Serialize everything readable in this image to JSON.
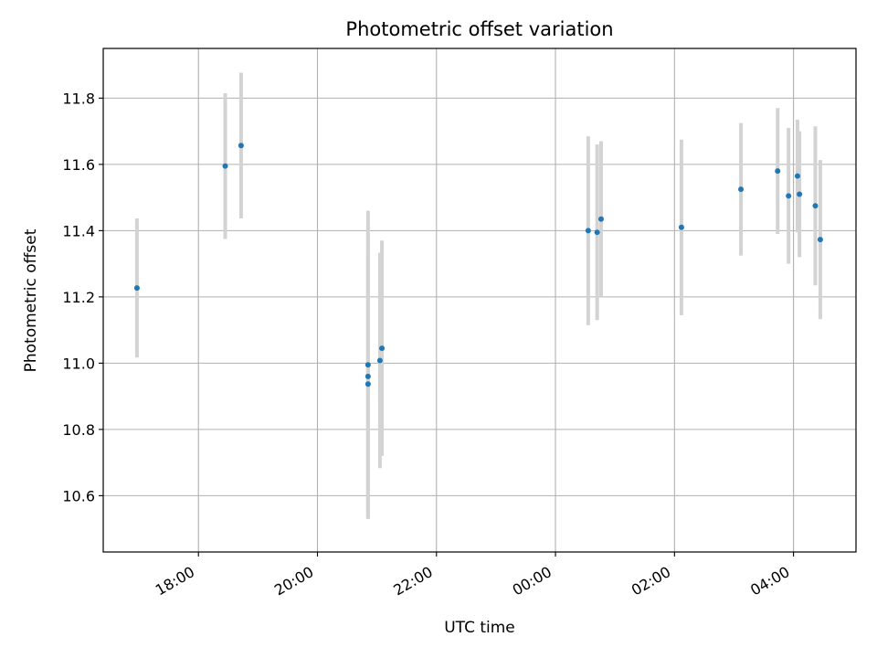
{
  "chart_data": {
    "type": "scatter",
    "title": "Photometric offset variation",
    "xlabel": "UTC time",
    "ylabel": "Photometric offset",
    "x_tick_labels": [
      "18:00",
      "20:00",
      "22:00",
      "00:00",
      "02:00",
      "04:00"
    ],
    "x_tick_hours": [
      18,
      20,
      22,
      24,
      26,
      28
    ],
    "xlim_hours": [
      16.4,
      29.05
    ],
    "y_ticks": [
      "10.6",
      "10.8",
      "11.0",
      "11.2",
      "11.4",
      "11.6",
      "11.8"
    ],
    "ylim": [
      10.43,
      11.95
    ],
    "grid": true,
    "point_color": "#1f77b4",
    "errorbar_color": "#d3d3d3",
    "points": [
      {
        "x": "16:58",
        "y": 11.227,
        "err": 0.21
      },
      {
        "x": "18:27",
        "y": 11.595,
        "err": 0.22
      },
      {
        "x": "18:43",
        "y": 11.657,
        "err": 0.22
      },
      {
        "x": "20:51",
        "y": 10.995,
        "err": 0.465
      },
      {
        "x": "20:51",
        "y": 10.96,
        "err": 0.43
      },
      {
        "x": "20:51",
        "y": 10.937,
        "err": 0.4
      },
      {
        "x": "21:03",
        "y": 11.008,
        "err": 0.325
      },
      {
        "x": "21:05",
        "y": 11.045,
        "err": 0.325
      },
      {
        "x": "00:33",
        "y": 11.4,
        "err": 0.285
      },
      {
        "x": "00:42",
        "y": 11.395,
        "err": 0.265
      },
      {
        "x": "00:46",
        "y": 11.435,
        "err": 0.235
      },
      {
        "x": "02:07",
        "y": 11.41,
        "err": 0.265
      },
      {
        "x": "03:07",
        "y": 11.525,
        "err": 0.2
      },
      {
        "x": "03:44",
        "y": 11.58,
        "err": 0.19
      },
      {
        "x": "03:55",
        "y": 11.505,
        "err": 0.205
      },
      {
        "x": "04:04",
        "y": 11.565,
        "err": 0.17
      },
      {
        "x": "04:06",
        "y": 11.51,
        "err": 0.19
      },
      {
        "x": "04:22",
        "y": 11.475,
        "err": 0.24
      },
      {
        "x": "04:27",
        "y": 11.373,
        "err": 0.24
      }
    ]
  }
}
